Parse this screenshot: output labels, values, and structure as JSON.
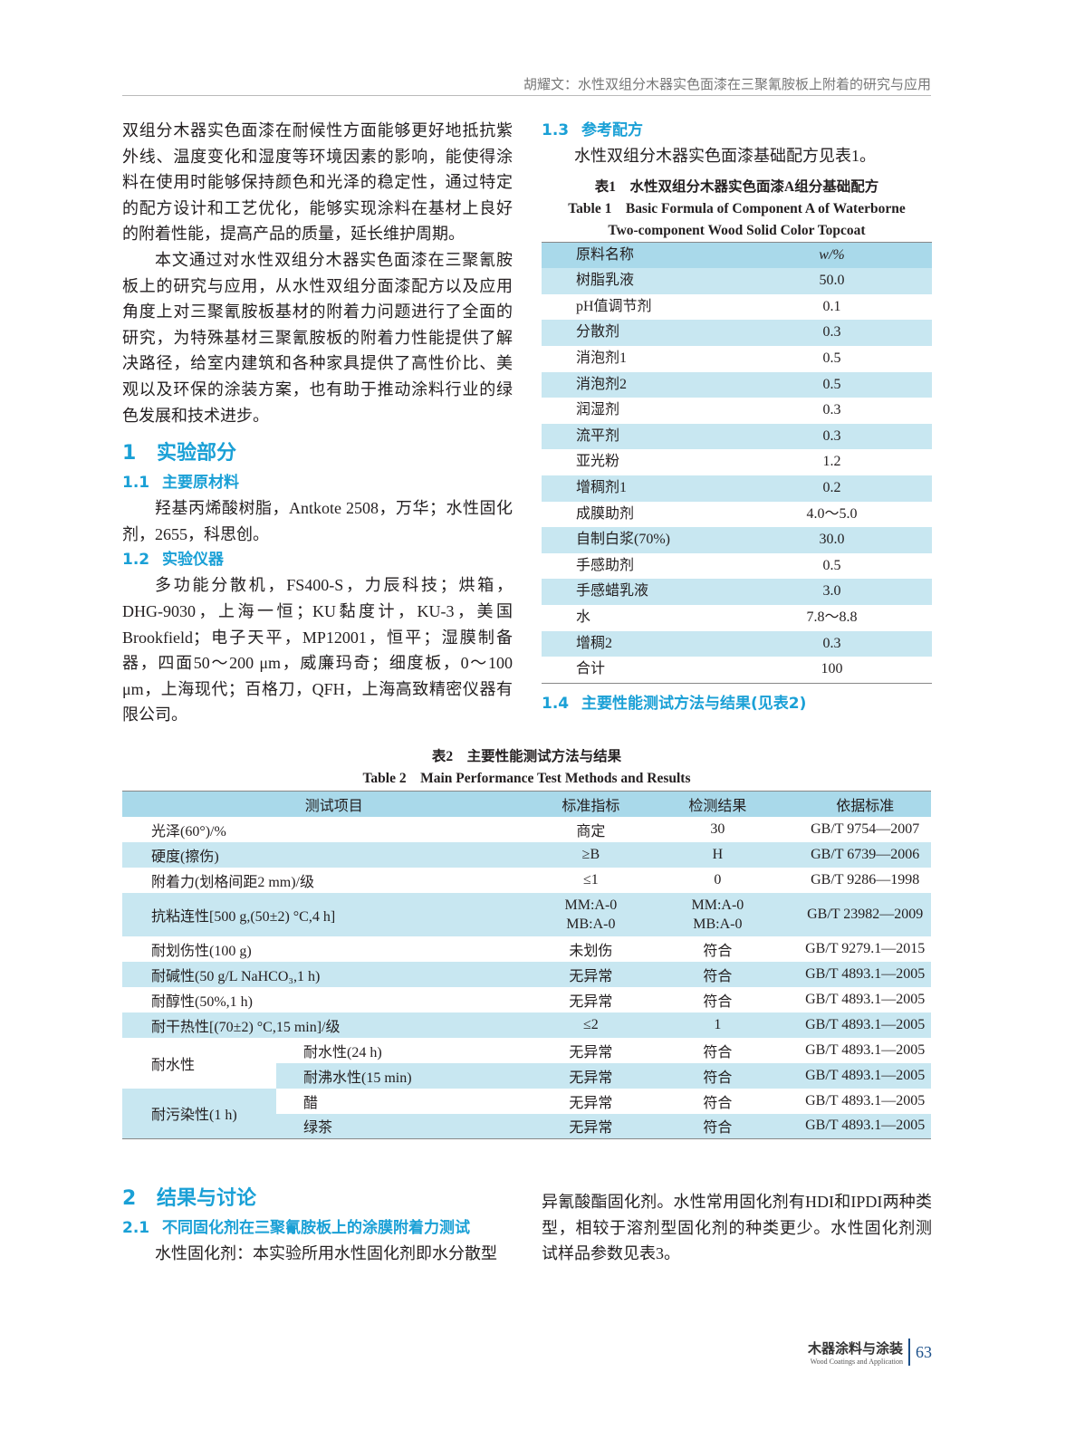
{
  "header": {
    "running_title": "胡耀文：水性双组分木器实色面漆在三聚氰胺板上附着的研究与应用"
  },
  "left": {
    "p1": "双组分木器实色面漆在耐候性方面能够更好地抵抗紫外线、温度变化和湿度等环境因素的影响，能使得涂料在使用时能够保持颜色和光泽的稳定性，通过特定的配方设计和工艺优化，能够实现涂料在基材上良好的附着性能，提高产品的质量，延长维护周期。",
    "p2": "本文通过对水性双组分木器实色面漆在三聚氰胺板上的研究与应用，从水性双组分面漆配方以及应用角度上对三聚氰胺板基材的附着力问题进行了全面的研究，为特殊基材三聚氰胺板的附着力性能提供了解决路径，给室内建筑和各种家具提供了高性价比、美观以及环保的涂装方案，也有助于推动涂料行业的绿色发展和技术进步。",
    "s1_num": "1",
    "s1_title": "实验部分",
    "s11_num": "1.1",
    "s11_title": "主要原材料",
    "s11_text": "羟基丙烯酸树脂，Antkote 2508，万华；水性固化剂，2655，科思创。",
    "s12_num": "1.2",
    "s12_title": "实验仪器",
    "s12_text": "多功能分散机，FS400-S，力辰科技；烘箱，DHG-9030，上海一恒；KU黏度计，KU-3，美国Brookfield；电子天平，MP12001，恒平；湿膜制备器，四面50～200 μm，威廉玛奇；细度板，0～100 μm，上海现代；百格刀，QFH，上海高致精密仪器有限公司。"
  },
  "right": {
    "s13_num": "1.3",
    "s13_title": "参考配方",
    "s13_text": "水性双组分木器实色面漆基础配方见表1。",
    "table1": {
      "caption_cn": "表1　水性双组分木器实色面漆A组分基础配方",
      "caption_en1": "Table 1　Basic Formula of Component A of Waterborne",
      "caption_en2": "Two-component Wood Solid Color Topcoat",
      "headers": [
        "原料名称",
        "w/%"
      ],
      "rows": [
        [
          "树脂乳液",
          "50.0"
        ],
        [
          "pH值调节剂",
          "0.1"
        ],
        [
          "分散剂",
          "0.3"
        ],
        [
          "消泡剂1",
          "0.5"
        ],
        [
          "消泡剂2",
          "0.5"
        ],
        [
          "润湿剂",
          "0.3"
        ],
        [
          "流平剂",
          "0.3"
        ],
        [
          "亚光粉",
          "1.2"
        ],
        [
          "增稠剂1",
          "0.2"
        ],
        [
          "成膜助剂",
          "4.0～5.0"
        ],
        [
          "自制白浆(70%)",
          "30.0"
        ],
        [
          "手感助剂",
          "0.5"
        ],
        [
          "手感蜡乳液",
          "3.0"
        ],
        [
          "水",
          "7.8～8.8"
        ],
        [
          "增稠2",
          "0.3"
        ],
        [
          "合计",
          "100"
        ]
      ]
    },
    "s14_num": "1.4",
    "s14_title": "主要性能测试方法与结果(见表2)"
  },
  "table2": {
    "caption_cn": "表2　主要性能测试方法与结果",
    "caption_en": "Table 2　Main Performance Test Methods and Results",
    "headers": [
      "测试项目",
      "标准指标",
      "检测结果",
      "依据标准"
    ],
    "rows": [
      [
        "光泽(60°)/%",
        "商定",
        "30",
        "GB/T 9754—2007"
      ],
      [
        "硬度(擦伤)",
        "≥B",
        "H",
        "GB/T 6739—2006"
      ],
      [
        "附着力(划格间距2 mm)/级",
        "≤1",
        "0",
        "GB/T 9286—1998"
      ],
      [
        "抗粘连性[500 g,(50±2) °C,4 h]",
        "MM:A-0",
        "MM:A-0",
        "GB/T 23982—2009",
        "MB:A-0",
        "MB:A-0"
      ],
      [
        "耐划伤性(100 g)",
        "未划伤",
        "符合",
        "GB/T 9279.1—2015"
      ],
      [
        "耐碱性(50 g/L NaHCO₃,1 h)",
        "无异常",
        "符合",
        "GB/T 4893.1—2005"
      ],
      [
        "耐醇性(50%,1 h)",
        "无异常",
        "符合",
        "GB/T 4893.1—2005"
      ],
      [
        "耐干热性[(70±2) °C,15 min]/级",
        "≤2",
        "1",
        "GB/T 4893.1—2005"
      ]
    ],
    "group1": {
      "label": "耐水性",
      "rows": [
        [
          "耐水性(24 h)",
          "无异常",
          "符合",
          "GB/T 4893.1—2005"
        ],
        [
          "耐沸水性(15 min)",
          "无异常",
          "符合",
          "GB/T 4893.1—2005"
        ]
      ]
    },
    "group2": {
      "label": "耐污染性(1 h)",
      "rows": [
        [
          "醋",
          "无异常",
          "符合",
          "GB/T 4893.1—2005"
        ],
        [
          "绿茶",
          "无异常",
          "符合",
          "GB/T 4893.1—2005"
        ]
      ]
    }
  },
  "bottom": {
    "s2_num": "2",
    "s2_title": "结果与讨论",
    "s21_num": "2.1",
    "s21_title": "不同固化剂在三聚氰胺板上的涂膜附着力测试",
    "left_text": "水性固化剂：本实验所用水性固化剂即水分散型",
    "right_text": "异氰酸酯固化剂。水性常用固化剂有HDI和IPDI两种类型，相较于溶剂型固化剂的种类更少。水性固化剂测试样品参数见表3。"
  },
  "footer": {
    "journal_cn": "木器涂料与涂装",
    "journal_en": "Wood Coatings and Application",
    "page": "63"
  },
  "colors": {
    "accent": "#1aa0d6",
    "table_header": "#a9d9ea",
    "table_stripe": "#c8e7f1"
  }
}
